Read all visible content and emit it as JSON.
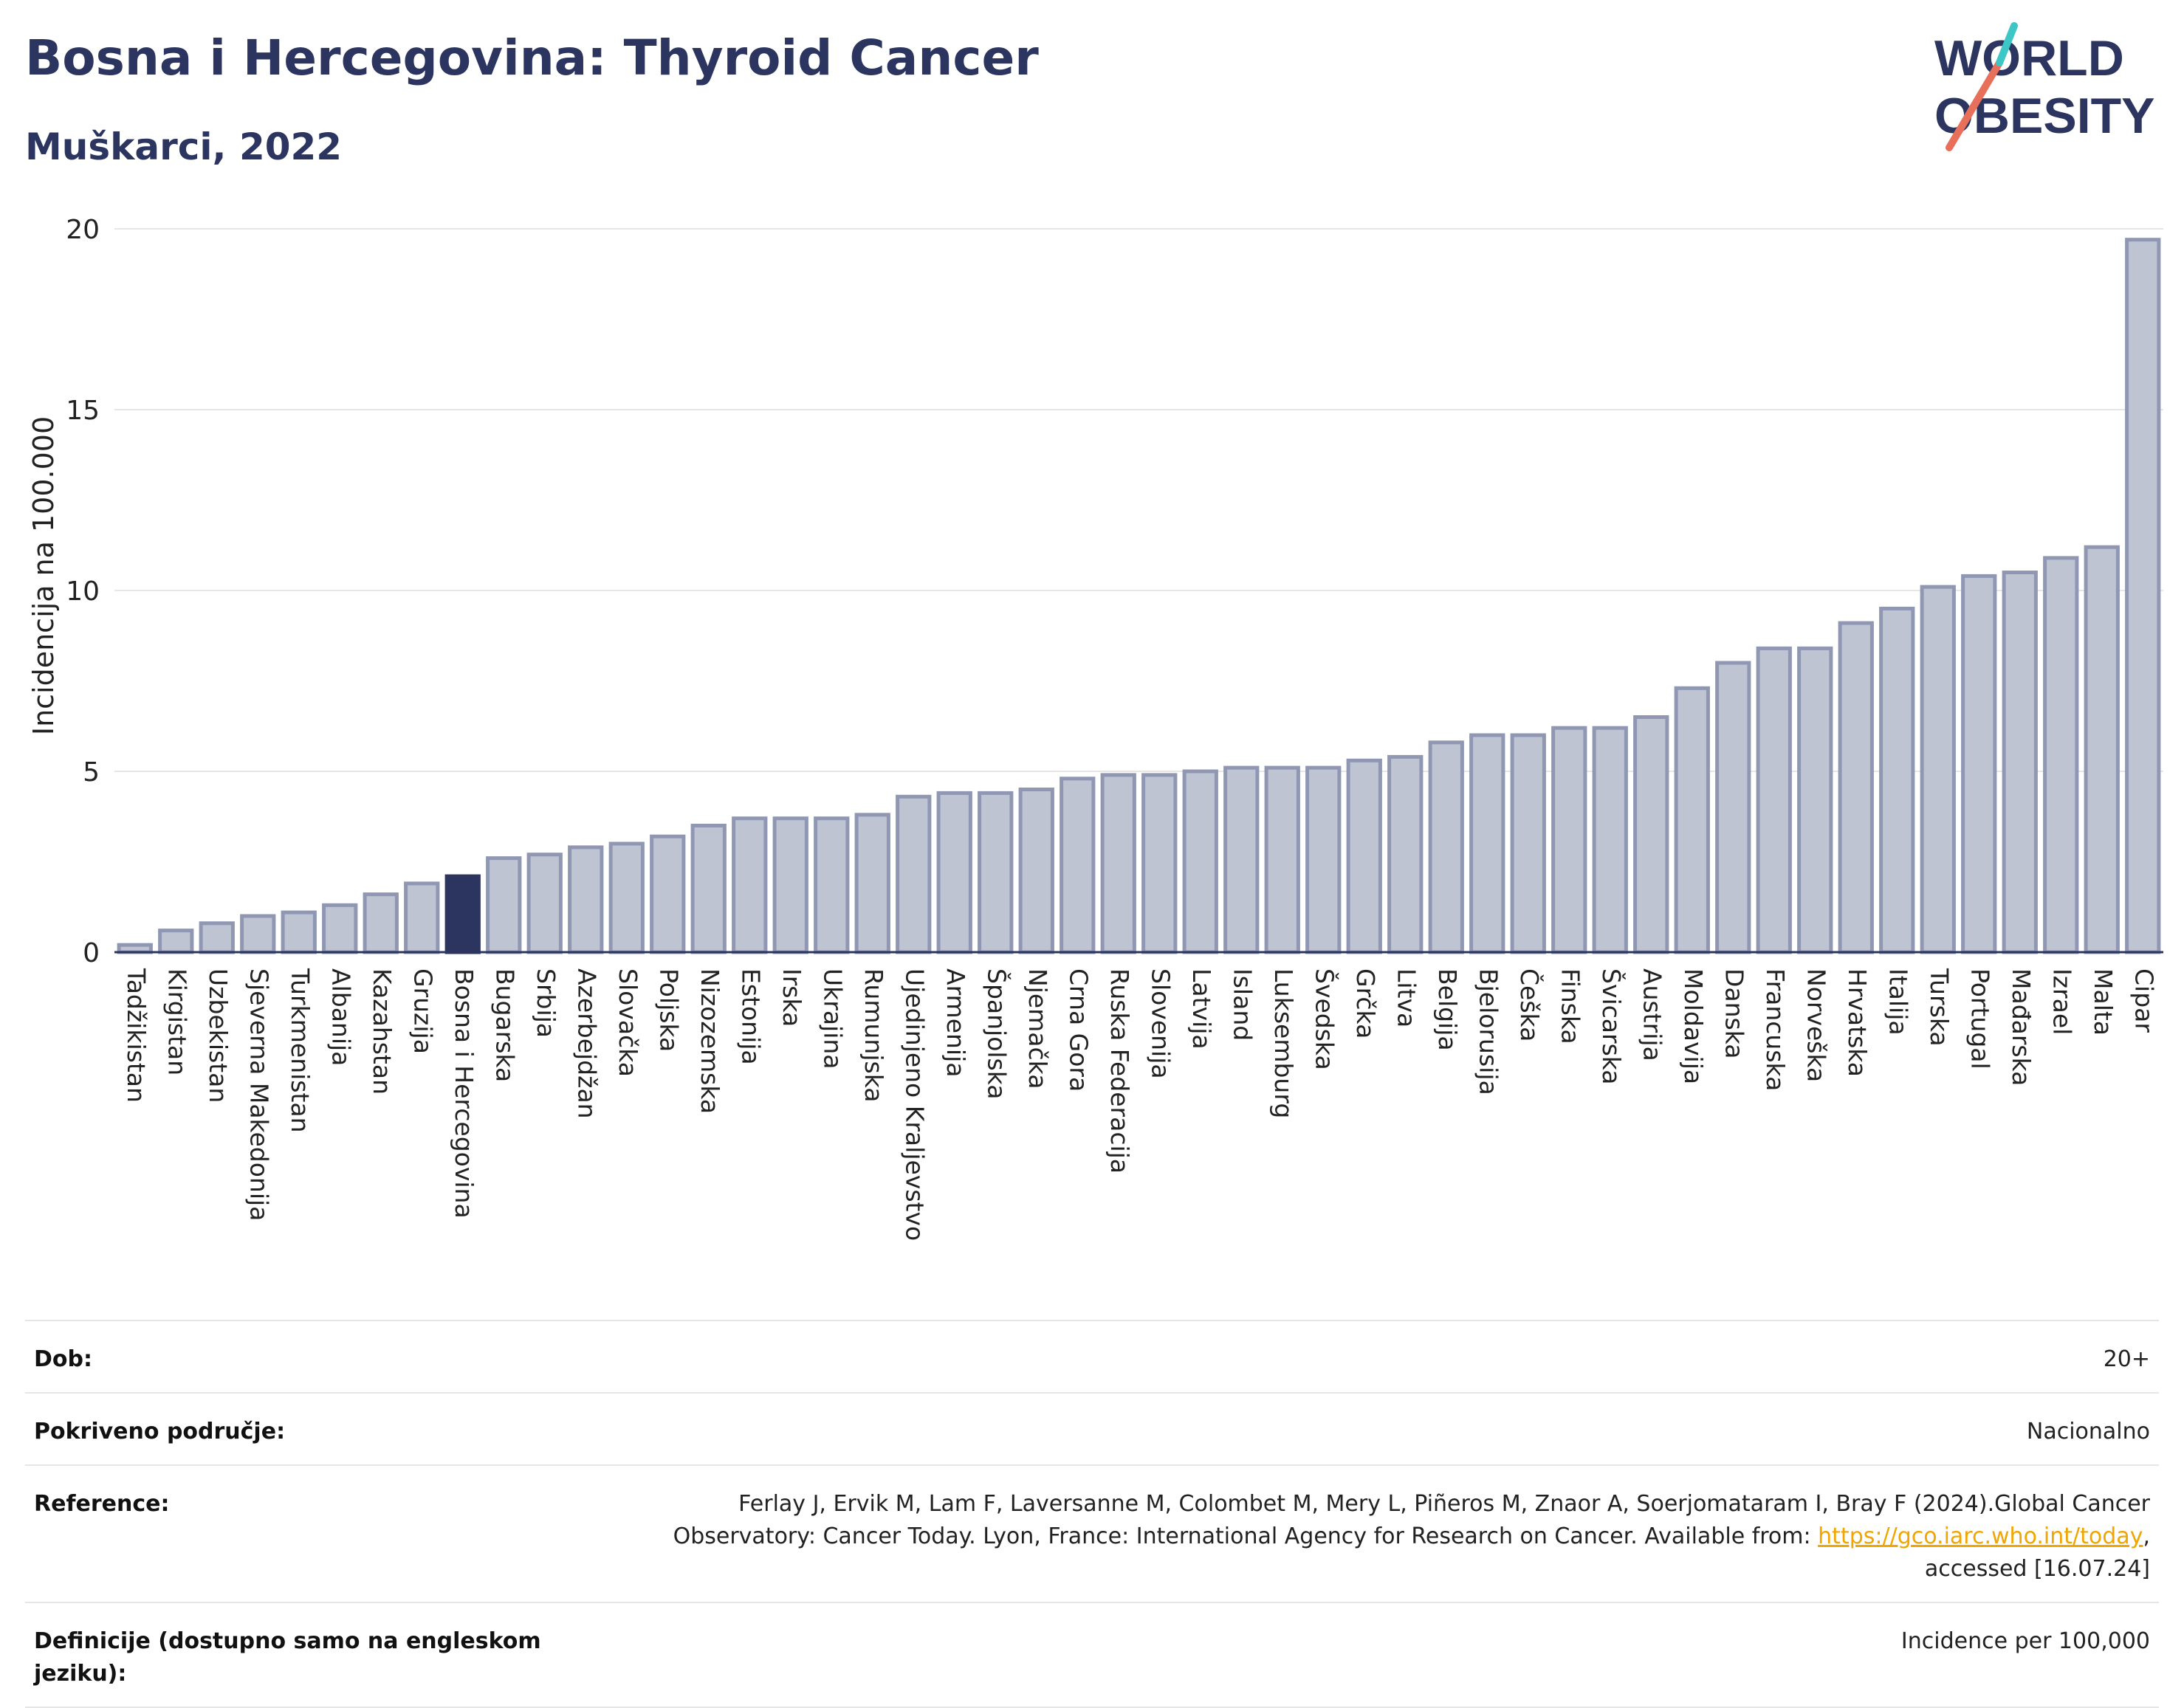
{
  "header": {
    "title": "Bosna i Hercegovina: Thyroid Cancer",
    "subtitle": "Muškarci, 2022"
  },
  "logo": {
    "line1": "WORLD",
    "line2": "OBESITY",
    "accent_color": "#e8705b",
    "accent2_color": "#3cc6c6"
  },
  "colors": {
    "bar": "#bfc4d3",
    "bar_border": "#8f97b3",
    "highlight": "#2b3560",
    "grid": "#e6e6e6"
  },
  "chart_data": {
    "type": "bar",
    "ylabel": "Incidencija na 100.000",
    "ylim": [
      0,
      20
    ],
    "yticks": [
      0,
      5,
      10,
      15,
      20
    ],
    "highlight": "Bosna i Hercegovina",
    "categories": [
      "Tadžikistan",
      "Kirgistan",
      "Uzbekistan",
      "Sjeverna Makedonija",
      "Turkmenistan",
      "Albanija",
      "Kazahstan",
      "Gruzija",
      "Bosna i Hercegovina",
      "Bugarska",
      "Srbija",
      "Azerbejdžan",
      "Slovačka",
      "Poljska",
      "Nizozemska",
      "Estonija",
      "Irska",
      "Ukrajina",
      "Rumunjska",
      "Ujedinjeno Kraljevstvo",
      "Armenija",
      "Španjolska",
      "Njemačka",
      "Crna Gora",
      "Ruska Federacija",
      "Slovenija",
      "Latvija",
      "Island",
      "Luksemburg",
      "Švedska",
      "Grčka",
      "Litva",
      "Belgija",
      "Bjelorusija",
      "Češka",
      "Finska",
      "Švicarska",
      "Austrija",
      "Moldavija",
      "Danska",
      "Francuska",
      "Norveška",
      "Hrvatska",
      "Italija",
      "Turska",
      "Portugal",
      "Mađarska",
      "Izrael",
      "Malta",
      "Cipar"
    ],
    "values": [
      0.2,
      0.6,
      0.8,
      1.0,
      1.1,
      1.3,
      1.6,
      1.9,
      2.1,
      2.6,
      2.7,
      2.9,
      3.0,
      3.2,
      3.5,
      3.7,
      3.7,
      3.7,
      3.8,
      4.3,
      4.4,
      4.4,
      4.5,
      4.8,
      4.9,
      4.9,
      5.0,
      5.1,
      5.1,
      5.1,
      5.3,
      5.4,
      5.8,
      6.0,
      6.0,
      6.2,
      6.2,
      6.5,
      7.3,
      8.0,
      8.4,
      8.4,
      9.1,
      9.5,
      10.1,
      10.4,
      10.5,
      10.9,
      11.2,
      19.7
    ]
  },
  "meta": {
    "age_label": "Dob:",
    "age_value": "20+",
    "coverage_label": "Pokriveno područje:",
    "coverage_value": "Nacionalno",
    "reference_label": "Reference:",
    "reference_text_1": "Ferlay J, Ervik M, Lam F, Laversanne M, Colombet M, Mery L, Piñeros M, Znaor A, Soerjomataram I, Bray F (2024).Global Cancer Observatory: Cancer Today. Lyon, France: International Agency for Research on Cancer. Available from: ",
    "reference_link": "https://gco.iarc.who.int/today",
    "reference_text_2": ", accessed [16.07.24]",
    "definitions_label": "Definicije (dostupno samo na engleskom jeziku):",
    "definitions_value": "Incidence per 100,000"
  }
}
